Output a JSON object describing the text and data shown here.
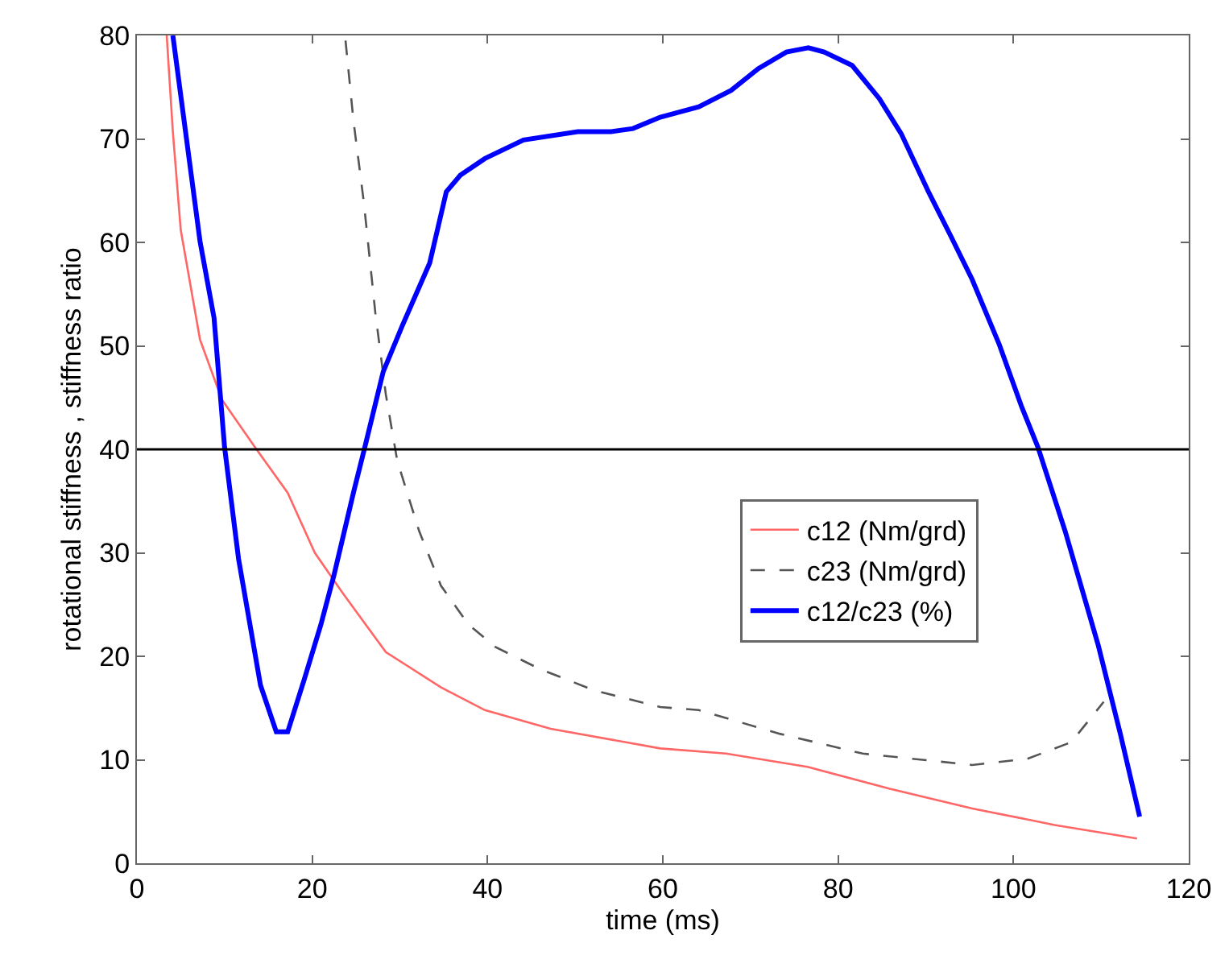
{
  "chart_data": {
    "type": "line",
    "xlabel": "time (ms)",
    "ylabel": "rotational stiffness , stiffness ratio",
    "xlim": [
      0,
      120
    ],
    "xticks": [
      0,
      20,
      40,
      60,
      80,
      100,
      120
    ],
    "ylim": [
      0,
      80
    ],
    "yticks": [
      0,
      10,
      20,
      30,
      40,
      50,
      60,
      70,
      80
    ],
    "legend": "right",
    "marker": "none",
    "ref_lines": [
      {
        "axis": "y",
        "value": 40,
        "color": "#000000"
      }
    ],
    "series": [
      {
        "name": "c12 (Nm/grd)",
        "color": "#ff6666",
        "line_style": "solid",
        "x": [
          3.4,
          4.1,
          5,
          7.2,
          9.7,
          13.4,
          17.2,
          20.3,
          23.4,
          28.4,
          34.7,
          39.7,
          47.2,
          59.7,
          67.2,
          76.6,
          85.9,
          95.3,
          104.7,
          114.1
        ],
        "values": [
          80,
          70.7,
          61.2,
          50.6,
          44.8,
          40.3,
          35.8,
          30,
          26.2,
          20.4,
          17,
          14.8,
          13,
          11.1,
          10.6,
          9.3,
          7.2,
          5.3,
          3.7,
          2.4
        ]
      },
      {
        "name": "c23 (Nm/grd)",
        "color": "#555555",
        "line_style": "dashed",
        "x": [
          23.8,
          24.7,
          25.9,
          27.2,
          28.4,
          29.7,
          32.2,
          34.7,
          37.8,
          40.9,
          45.9,
          52.2,
          59.7,
          64.1,
          73.4,
          82.8,
          95.3,
          101.6,
          106.6,
          110.3
        ],
        "values": [
          79.5,
          71.8,
          63.8,
          53.2,
          45.3,
          38.9,
          32.1,
          26.8,
          23.1,
          20.9,
          18.8,
          16.7,
          15.1,
          14.8,
          12.5,
          10.6,
          9.5,
          10.1,
          11.7,
          15.6
        ]
      },
      {
        "name": "c12/c23 (%)",
        "color": "#0000ff",
        "line_style": "solid",
        "x": [
          4.1,
          7.2,
          8.8,
          10,
          11.6,
          14.1,
          15.9,
          17.2,
          19.1,
          21,
          22.5,
          24.7,
          26,
          28.1,
          30.3,
          33.4,
          35.3,
          36.9,
          39.7,
          44.1,
          50.3,
          54.1,
          56.6,
          59.7,
          61.9,
          64.1,
          67.8,
          70.9,
          74.1,
          76.6,
          78.4,
          81.6,
          84.7,
          87.2,
          90.3,
          92.8,
          95.3,
          98.4,
          100.9,
          102.8,
          105.9,
          109.7,
          112.2,
          114.4
        ],
        "values": [
          80,
          60.1,
          52.7,
          40.2,
          29.4,
          17.2,
          12.7,
          12.7,
          17.8,
          23.1,
          27.9,
          35.8,
          40.2,
          47.5,
          52,
          58,
          64.9,
          66.5,
          68.1,
          69.9,
          70.7,
          70.7,
          71,
          72.1,
          72.6,
          73.1,
          74.7,
          76.8,
          78.4,
          78.8,
          78.4,
          77.1,
          73.9,
          70.5,
          64.9,
          60.7,
          56.4,
          50.1,
          44.2,
          40.2,
          32.1,
          21,
          12.5,
          4.5
        ]
      }
    ]
  }
}
